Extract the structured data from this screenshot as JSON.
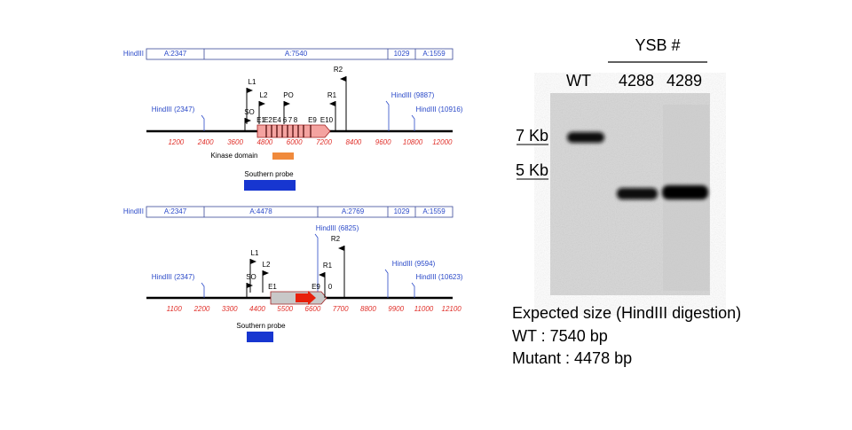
{
  "wt_map": {
    "site_label": "HindIII",
    "fragments": [
      "A:2347",
      "A:7540",
      "1029",
      "A:1559"
    ],
    "scale": [
      1200,
      2400,
      3600,
      4800,
      6000,
      7200,
      8400,
      9600,
      10800,
      12000
    ],
    "hindiii_sites": [
      "HindIII (2347)",
      "HindIII (9887)",
      "HindIII (10916)"
    ],
    "primers": [
      "SO",
      "L1",
      "L2",
      "PO",
      "R1",
      "R2"
    ],
    "exons": [
      "E1",
      "E2",
      "E4",
      "6",
      "7",
      "8",
      "E9",
      "E10"
    ],
    "kinase_domain": "Kinase domain",
    "probe": "Southern probe"
  },
  "mutant_map": {
    "site_label": "HindIII",
    "fragments": [
      "A:2347",
      "A:4478",
      "A:2769",
      "1029",
      "A:1559"
    ],
    "scale": [
      1100,
      2200,
      3300,
      4400,
      5500,
      6600,
      7700,
      8800,
      9900,
      11000,
      12100
    ],
    "hindiii_sites": [
      "HindIII (2347)",
      "HindIII (6825)",
      "HindIII (9594)",
      "HindIII (10623)"
    ],
    "primers": [
      "SO",
      "L1",
      "L2",
      "R1",
      "R2"
    ],
    "exons": [
      "E1",
      "E9",
      "0"
    ],
    "probe": "Southern probe"
  },
  "gel": {
    "group_label": "YSB #",
    "lanes": [
      "WT",
      "4288",
      "4289"
    ],
    "markers": [
      "7 Kb",
      "5 Kb"
    ]
  },
  "expected": {
    "title": "Expected size (HindIII digestion)",
    "lines": [
      "WT : 7540 bp",
      "Mutant : 4478 bp"
    ]
  }
}
